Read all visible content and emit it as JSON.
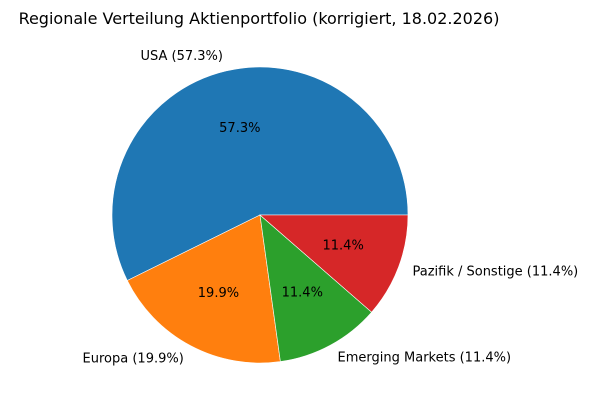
{
  "chart_data": {
    "type": "pie",
    "title": "Regionale Verteilung Aktienportfolio (korrigiert, 18.02.2026)",
    "slices": [
      {
        "label": "USA (57.3%)",
        "value": 57.3,
        "pct_text": "57.3%",
        "color": "#1f77b4"
      },
      {
        "label": "Europa (19.9%)",
        "value": 19.9,
        "pct_text": "19.9%",
        "color": "#ff7f0e"
      },
      {
        "label": "Emerging Markets (11.4%)",
        "value": 11.4,
        "pct_text": "11.4%",
        "color": "#2ca02c"
      },
      {
        "label": "Pazifik / Sonstige (11.4%)",
        "value": 11.4,
        "pct_text": "11.4%",
        "color": "#d62728"
      }
    ],
    "start_angle_deg": 0,
    "direction": "counterclockwise",
    "legend": "none"
  }
}
